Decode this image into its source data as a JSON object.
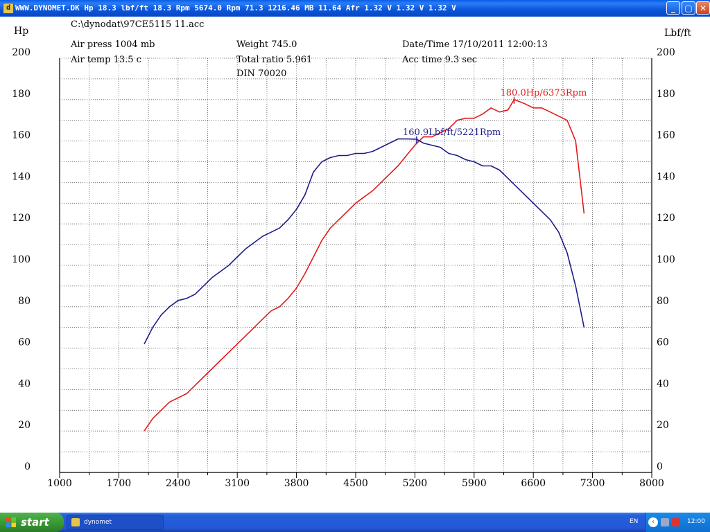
{
  "window": {
    "title": "WWW.DYNOMET.DK Hp 18.3 lbf/ft 18.3 Rpm 5674.0 Rpm 71.3   1216.46 MB 11.64 Afr 1.32 V 1.32 V 1.32 V",
    "minimize": "_",
    "maximize": "▢",
    "close": "✕"
  },
  "header": {
    "file_path": "C:\\dynodat\\97CE5115 11.acc",
    "air_press": "Air press  1004 mb",
    "air_temp": "Air temp   13.5 c",
    "weight": "Weight    745.0",
    "total_ratio": "Total ratio 5.961",
    "din": "DIN 70020",
    "datetime": "Date/Time  17/10/2011 12:00:13",
    "acc_time": "Acc time   9.3 sec"
  },
  "chart_data": {
    "type": "line",
    "xlim": [
      1000,
      8000
    ],
    "x_ticks": [
      1000,
      1700,
      2400,
      3100,
      3800,
      4500,
      5200,
      5900,
      6600,
      7300,
      8000
    ],
    "ylim_left": [
      0,
      200
    ],
    "ylim_right": [
      0,
      200
    ],
    "y_ticks_left": [
      0,
      20,
      40,
      60,
      80,
      100,
      120,
      140,
      160,
      180,
      200
    ],
    "y_ticks_right": [
      0,
      20,
      40,
      60,
      80,
      100,
      120,
      140,
      160,
      180,
      200
    ],
    "ylabel_left": "Hp",
    "ylabel_right": "Lbf/ft",
    "grid": true,
    "series": [
      {
        "name": "Hp",
        "color": "#e21b1b",
        "points": [
          [
            2000,
            20
          ],
          [
            2100,
            26
          ],
          [
            2200,
            30
          ],
          [
            2300,
            34
          ],
          [
            2400,
            36
          ],
          [
            2500,
            38
          ],
          [
            2600,
            42
          ],
          [
            2700,
            46
          ],
          [
            2800,
            50
          ],
          [
            2900,
            54
          ],
          [
            3000,
            58
          ],
          [
            3100,
            62
          ],
          [
            3200,
            66
          ],
          [
            3300,
            70
          ],
          [
            3400,
            74
          ],
          [
            3500,
            78
          ],
          [
            3600,
            80
          ],
          [
            3700,
            84
          ],
          [
            3800,
            89
          ],
          [
            3900,
            96
          ],
          [
            4000,
            104
          ],
          [
            4100,
            112
          ],
          [
            4200,
            118
          ],
          [
            4300,
            122
          ],
          [
            4400,
            126
          ],
          [
            4500,
            130
          ],
          [
            4600,
            133
          ],
          [
            4700,
            136
          ],
          [
            4800,
            140
          ],
          [
            4900,
            144
          ],
          [
            5000,
            148
          ],
          [
            5100,
            153
          ],
          [
            5200,
            158
          ],
          [
            5300,
            162
          ],
          [
            5400,
            162
          ],
          [
            5500,
            164
          ],
          [
            5600,
            166
          ],
          [
            5700,
            170
          ],
          [
            5800,
            171
          ],
          [
            5900,
            171
          ],
          [
            6000,
            173
          ],
          [
            6100,
            176
          ],
          [
            6200,
            174
          ],
          [
            6300,
            175
          ],
          [
            6373,
            180
          ],
          [
            6500,
            178
          ],
          [
            6600,
            176
          ],
          [
            6700,
            176
          ],
          [
            6800,
            174
          ],
          [
            6900,
            172
          ],
          [
            7000,
            170
          ],
          [
            7100,
            160
          ],
          [
            7200,
            125
          ]
        ]
      },
      {
        "name": "Lbf/ft",
        "color": "#1c1c88",
        "points": [
          [
            2000,
            62
          ],
          [
            2100,
            70
          ],
          [
            2200,
            76
          ],
          [
            2300,
            80
          ],
          [
            2400,
            83
          ],
          [
            2500,
            84
          ],
          [
            2600,
            86
          ],
          [
            2700,
            90
          ],
          [
            2800,
            94
          ],
          [
            2900,
            97
          ],
          [
            3000,
            100
          ],
          [
            3100,
            104
          ],
          [
            3200,
            108
          ],
          [
            3300,
            111
          ],
          [
            3400,
            114
          ],
          [
            3500,
            116
          ],
          [
            3600,
            118
          ],
          [
            3700,
            122
          ],
          [
            3800,
            127
          ],
          [
            3900,
            134
          ],
          [
            4000,
            145
          ],
          [
            4100,
            150
          ],
          [
            4200,
            152
          ],
          [
            4300,
            153
          ],
          [
            4400,
            153
          ],
          [
            4500,
            154
          ],
          [
            4600,
            154
          ],
          [
            4700,
            155
          ],
          [
            4800,
            157
          ],
          [
            4900,
            159
          ],
          [
            5000,
            161
          ],
          [
            5100,
            161
          ],
          [
            5221,
            160.9
          ],
          [
            5300,
            159
          ],
          [
            5400,
            158
          ],
          [
            5500,
            157
          ],
          [
            5600,
            154
          ],
          [
            5700,
            153
          ],
          [
            5800,
            151
          ],
          [
            5900,
            150
          ],
          [
            6000,
            148
          ],
          [
            6100,
            148
          ],
          [
            6200,
            146
          ],
          [
            6300,
            142
          ],
          [
            6400,
            138
          ],
          [
            6500,
            134
          ],
          [
            6600,
            130
          ],
          [
            6700,
            126
          ],
          [
            6800,
            122
          ],
          [
            6900,
            116
          ],
          [
            7000,
            106
          ],
          [
            7100,
            90
          ],
          [
            7200,
            70
          ]
        ]
      }
    ],
    "annotations": [
      {
        "text": "180.0Hp/6373Rpm",
        "x": 6373,
        "y": 180,
        "color": "#e21b1b"
      },
      {
        "text": "160.9Lbf/ft/5221Rpm",
        "x": 5221,
        "y": 160.9,
        "color": "#1c1c88"
      }
    ]
  },
  "taskbar": {
    "start_label": "start",
    "task_label": "dynomet",
    "language": "EN",
    "clock": "12:00"
  }
}
